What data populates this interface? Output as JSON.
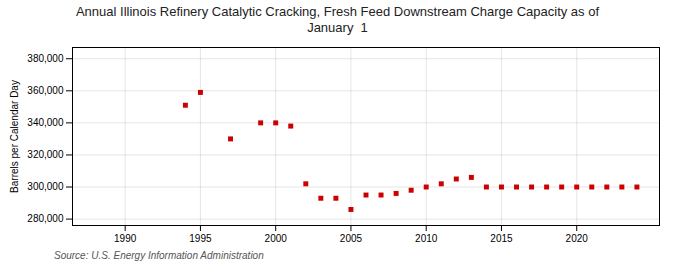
{
  "chart_data": {
    "type": "scatter",
    "title": "Annual Illinois Refinery Catalytic Cracking, Fresh Feed Downstream Charge Capacity as of\nJanuary  1",
    "ylabel": "Barrels per Calendar Day",
    "source": "Source: U.S. Energy Information Administration",
    "x": [
      1994,
      1995,
      1997,
      1999,
      2000,
      2001,
      2002,
      2003,
      2004,
      2005,
      2006,
      2007,
      2008,
      2009,
      2010,
      2011,
      2012,
      2013,
      2014,
      2015,
      2016,
      2017,
      2018,
      2019,
      2020,
      2021,
      2022,
      2023,
      2024
    ],
    "values": [
      351000,
      359000,
      330000,
      340000,
      340000,
      338000,
      302000,
      293000,
      293000,
      286000,
      295000,
      295000,
      296000,
      298000,
      300000,
      302000,
      305000,
      306000,
      300000,
      300000,
      300000,
      300000,
      300000,
      300000,
      300000,
      300000,
      300000,
      300000,
      300000
    ],
    "color": "#cc0000",
    "marker": "square",
    "xlim": [
      1986.5,
      2025.5
    ],
    "xticks": [
      1990,
      1995,
      2000,
      2005,
      2010,
      2015,
      2020
    ],
    "ylim": [
      276000,
      387000
    ],
    "yticks": [
      {
        "value": 280000,
        "label": "280,000"
      },
      {
        "value": 300000,
        "label": "300,000"
      },
      {
        "value": 320000,
        "label": "320,000"
      },
      {
        "value": 340000,
        "label": "340,000"
      },
      {
        "value": 360000,
        "label": "360,000"
      },
      {
        "value": 380000,
        "label": "380,000"
      }
    ],
    "grid": true
  }
}
